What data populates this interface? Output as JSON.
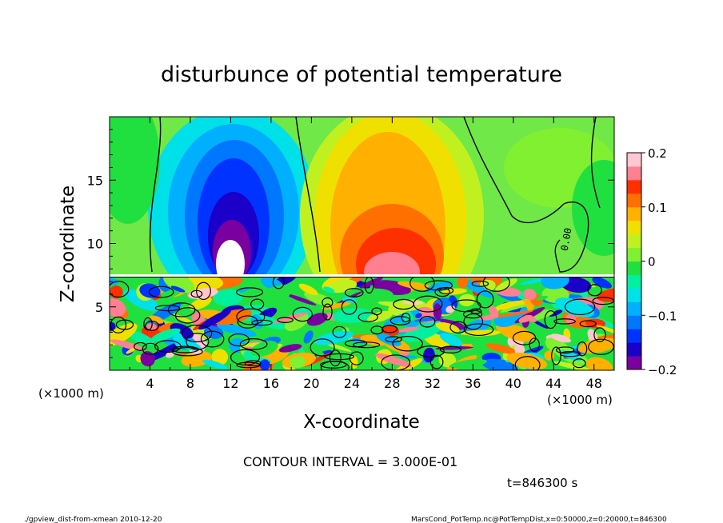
{
  "chart_data": {
    "type": "heatmap",
    "title": "disturbunce of potential temperature",
    "xlabel": "X-coordinate",
    "ylabel": "Z-coordinate",
    "x_unit_left": "(×1000 m)",
    "x_unit_right": "(×1000 m)",
    "xlim": [
      0,
      50
    ],
    "ylim": [
      0,
      20
    ],
    "x_ticks": [
      "4",
      "8",
      "12",
      "16",
      "20",
      "24",
      "28",
      "32",
      "36",
      "40",
      "44",
      "48"
    ],
    "y_ticks": [
      "5",
      "10",
      "15"
    ],
    "colorbar": {
      "min": -0.2,
      "max": 0.2,
      "tick_labels": [
        "0.2",
        "0.1",
        "0",
        "−0.1",
        "−0.2"
      ],
      "colors": [
        "#7a00a0",
        "#1a00c8",
        "#0033ff",
        "#0077ff",
        "#00b0ff",
        "#00e0e8",
        "#00f0a0",
        "#20e040",
        "#80f030",
        "#c0f020",
        "#f0e000",
        "#ffb000",
        "#ff7000",
        "#ff3000",
        "#ff8090",
        "#ffc8d0"
      ]
    },
    "contour_label": "0.00",
    "contour_interval_text": "CONTOUR INTERVAL = 3.000E-01",
    "time_text": "t=846300 s",
    "footer_left": "./gpview_dist-from-xmean  2010-12-20",
    "footer_right": "MarsCond_PotTemp.nc@PotTempDist,x=0:50000,z=0:20000,t=846300"
  }
}
